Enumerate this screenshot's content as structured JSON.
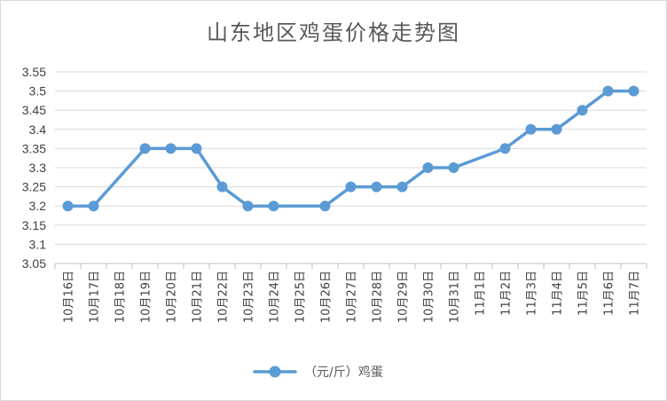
{
  "chart_data": {
    "type": "line",
    "title": "山东地区鸡蛋价格走势图",
    "xlabel": "",
    "ylabel": "",
    "categories": [
      "10月16日",
      "10月17日",
      "10月18日",
      "10月19日",
      "10月20日",
      "10月21日",
      "10月22日",
      "10月23日",
      "10月24日",
      "10月25日",
      "10月26日",
      "10月27日",
      "10月28日",
      "10月29日",
      "10月30日",
      "10月31日",
      "11月1日",
      "11月2日",
      "11月3日",
      "11月4日",
      "11月5日",
      "11月6日",
      "11月7日"
    ],
    "series": [
      {
        "name": "（元/斤）鸡蛋",
        "color": "#5b9bd5",
        "values": [
          3.2,
          3.2,
          null,
          3.35,
          3.35,
          3.35,
          3.25,
          3.2,
          3.2,
          null,
          3.2,
          3.25,
          3.25,
          3.25,
          3.3,
          3.3,
          null,
          3.35,
          3.4,
          3.4,
          3.45,
          3.5,
          3.5
        ]
      }
    ],
    "ylim": [
      3.05,
      3.55
    ],
    "yticks": [
      "3.05",
      "3.1",
      "3.15",
      "3.2",
      "3.25",
      "3.3",
      "3.35",
      "3.4",
      "3.45",
      "3.5",
      "3.55"
    ],
    "grid": true,
    "legend_position": "bottom"
  }
}
